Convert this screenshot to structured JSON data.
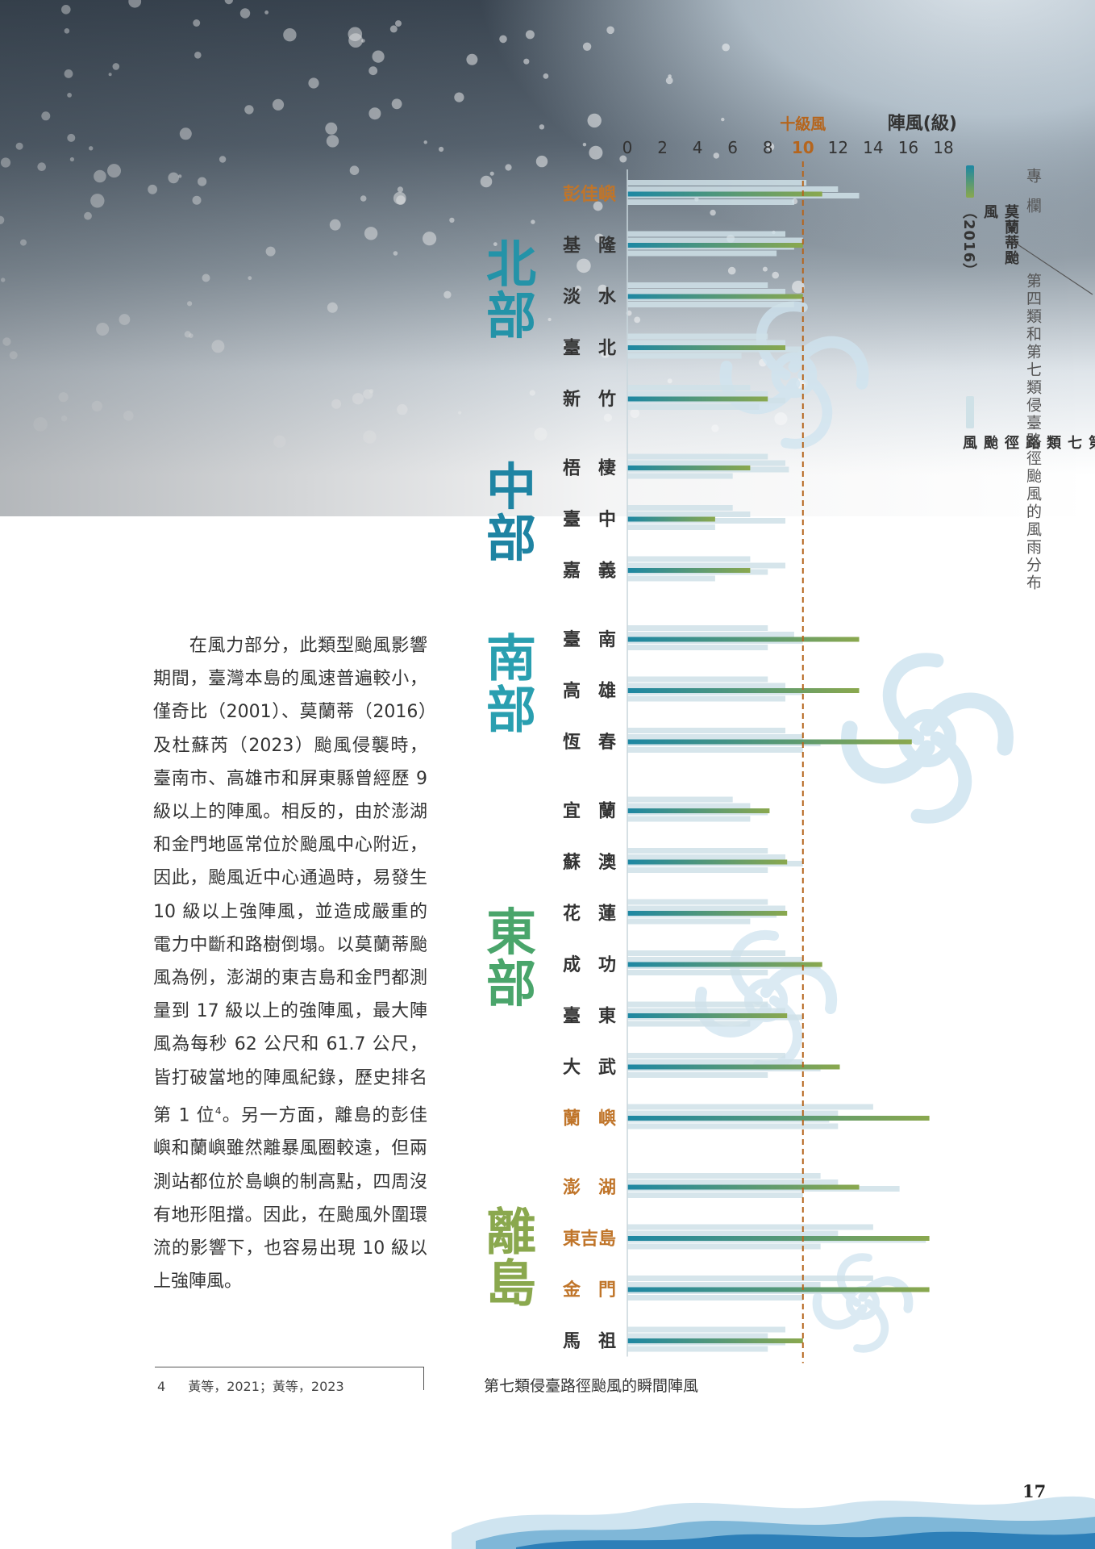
{
  "sidebar": {
    "column_tag": "專欄",
    "column_title": "第四類和第七類侵臺路徑颱風的風雨分布"
  },
  "legend": {
    "meranti": "莫蘭蒂颱風（2016）",
    "others": "其他第七類路徑颱風"
  },
  "body_text": {
    "part1": "在風力部分，此類型颱風影響期間，臺灣本島的風速普遍較小，僅奇比（2001）、莫蘭蒂（2016）及杜蘇芮（2023）颱風侵襲時，臺南市、高雄市和屏東縣曾經歷 9 級以上的陣風。相反的，由於澎湖和金門地區常位於颱風中心附近，因此，颱風近中心通過時，易發生 10 級以上強陣風，並造成嚴重的電力中斷和路樹倒塌。以莫蘭蒂颱風為例，澎湖的東吉島和金門都測量到 17 級以上的強陣風，最大陣風為每秒 62 公尺和 61.7 公尺，皆打破當地的陣風紀錄，歷史排名第 1 位",
    "footnote_ref": "4",
    "part2": "。另一方面，離島的彭佳嶼和蘭嶼雖然離暴風圈較遠，但兩測站都位於島嶼的制高點，四周沒有地形阻擋。因此，在颱風外圍環流的影響下，也容易出現 10 級以上強陣風。"
  },
  "footnote": {
    "number": "4",
    "text": "黃等，2021；黃等，2023"
  },
  "caption": "第七類侵臺路徑颱風的瞬間陣風",
  "page_number": "17",
  "chart_data": {
    "type": "bar",
    "orientation": "horizontal",
    "xlabel": "陣風(級)",
    "xlim": [
      0,
      18
    ],
    "xticks": [
      0,
      2,
      4,
      6,
      8,
      10,
      12,
      14,
      16,
      18
    ],
    "reference_line": {
      "value": 10,
      "label": "十級風",
      "color": "#b5651d",
      "style": "dashed"
    },
    "colors": {
      "meranti_start": "#1d87a3",
      "meranti_end": "#8aa84e",
      "others": "#cfe1e7",
      "island_label": "#c0752a"
    },
    "groups": [
      {
        "name": "北部",
        "color": "#2493a8",
        "stations": [
          "彭佳嶼",
          "基　隆",
          "淡　水",
          "臺　北",
          "新　竹"
        ]
      },
      {
        "name": "中部",
        "color": "#1f84a3",
        "stations": [
          "梧　棲",
          "臺　中",
          "嘉　義"
        ]
      },
      {
        "name": "南部",
        "color": "#2a9fb0",
        "stations": [
          "臺　南",
          "高　雄",
          "恆　春"
        ]
      },
      {
        "name": "東部",
        "color": "#4aa56b",
        "stations": [
          "宜　蘭",
          "蘇　澳",
          "花　蓮",
          "成　功",
          "臺　東",
          "大　武",
          "蘭　嶼"
        ]
      },
      {
        "name": "離島",
        "color": "#8aa84e",
        "stations": [
          "澎　湖",
          "東吉島",
          "金　門",
          "馬　祖"
        ]
      }
    ],
    "series": [
      {
        "name": "莫蘭蒂颱風（2016）",
        "values": [
          11.1,
          10,
          10,
          9,
          8,
          7,
          5,
          7,
          13.2,
          13.2,
          16.2,
          8.1,
          9.1,
          9.1,
          11.1,
          9.1,
          12.1,
          17.2,
          13.2,
          17.2,
          17.2,
          10
        ]
      },
      {
        "name": "其他第七類路徑颱風",
        "values": [
          [
            10.2,
            12,
            13.2,
            9.5
          ],
          [
            9,
            10,
            9.5,
            8.5
          ],
          [
            8,
            9,
            10,
            9.5
          ],
          [
            8,
            9,
            10,
            6.5
          ],
          [
            7,
            8,
            9,
            7.5
          ],
          [
            8,
            9,
            9.2,
            6
          ],
          [
            6,
            7,
            9,
            5
          ],
          [
            7,
            9,
            8,
            5
          ],
          [
            8,
            9.5,
            10,
            8
          ],
          [
            8,
            9,
            10,
            9
          ],
          [
            9,
            10,
            11,
            10
          ],
          [
            6,
            7,
            8,
            7
          ],
          [
            8,
            9,
            10,
            8
          ],
          [
            8,
            9,
            8.5,
            7
          ],
          [
            9,
            10,
            11,
            8
          ],
          [
            8,
            9,
            10,
            7
          ],
          [
            9,
            10,
            11,
            8
          ],
          [
            14,
            12,
            11.5,
            12
          ],
          [
            11,
            12,
            15.5,
            10
          ],
          [
            14,
            12,
            17,
            11
          ],
          [
            14,
            11,
            13,
            10
          ],
          [
            9,
            8,
            9,
            8
          ]
        ]
      }
    ]
  }
}
